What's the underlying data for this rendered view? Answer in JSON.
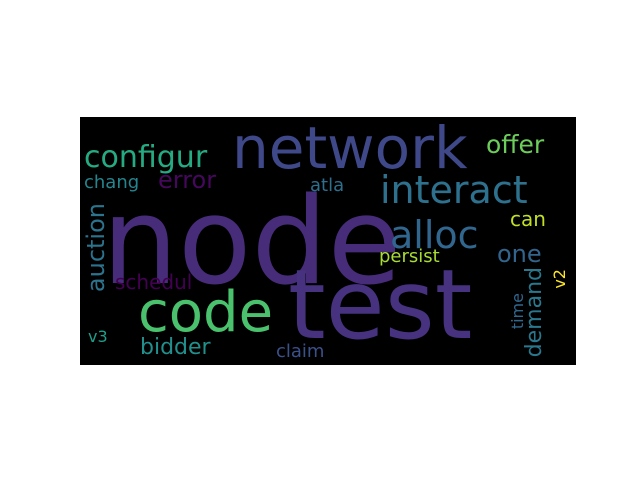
{
  "wordcloud": {
    "background": "#000000",
    "words": [
      {
        "text": "node",
        "color": "#472c7a"
      },
      {
        "text": "test",
        "color": "#46327e"
      },
      {
        "text": "network",
        "color": "#3f4889"
      },
      {
        "text": "code",
        "color": "#4ac16d"
      },
      {
        "text": "interact",
        "color": "#2d718e"
      },
      {
        "text": "alloc",
        "color": "#31668e"
      },
      {
        "text": "configur",
        "color": "#25ab82"
      },
      {
        "text": "error",
        "color": "#46085c"
      },
      {
        "text": "offer",
        "color": "#6ccd5a"
      },
      {
        "text": "chang",
        "color": "#25858e"
      },
      {
        "text": "atla",
        "color": "#2e6f8e"
      },
      {
        "text": "can",
        "color": "#c2df23"
      },
      {
        "text": "one",
        "color": "#32658e"
      },
      {
        "text": "auction",
        "color": "#2c738e"
      },
      {
        "text": "schedul",
        "color": "#440154"
      },
      {
        "text": "persist",
        "color": "#a8db34"
      },
      {
        "text": "demand",
        "color": "#2a788e"
      },
      {
        "text": "time",
        "color": "#31678e"
      },
      {
        "text": "v2",
        "color": "#fde725"
      },
      {
        "text": "bidder",
        "color": "#21908d"
      },
      {
        "text": "claim",
        "color": "#3b518b"
      },
      {
        "text": "v3",
        "color": "#1f9e89"
      }
    ]
  }
}
